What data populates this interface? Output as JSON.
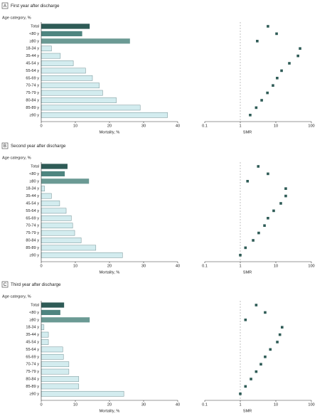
{
  "chart_data": [
    {
      "type": "bar",
      "panel": "A",
      "title": "First year after discharge",
      "categories_label": "Age category, %",
      "categories": [
        "Total",
        "<80 y",
        "≥80 y",
        "18-34 y",
        "35-44 y",
        "45-54 y",
        "55-64 y",
        "65-69 y",
        "70-74 y",
        "75-79 y",
        "80-84 y",
        "85-89 y",
        "≥90 y"
      ],
      "bar_colors": [
        "#2e5b56",
        "#4f8580",
        "#6b9a94",
        "#d3ecef",
        "#d3ecef",
        "#d3ecef",
        "#d3ecef",
        "#d3ecef",
        "#d3ecef",
        "#d3ecef",
        "#d3ecef",
        "#d3ecef",
        "#d3ecef"
      ],
      "mortality": {
        "xlabel": "Mortality, %",
        "xlim": [
          0,
          40
        ],
        "xticks": [
          0,
          10,
          20,
          30,
          40
        ],
        "values": [
          14.2,
          12,
          26,
          3,
          5.6,
          9.4,
          13,
          15,
          17,
          18,
          22,
          29,
          37
        ]
      },
      "smr": {
        "type": "scatter",
        "xlabel": "SMR",
        "log": true,
        "xlim": [
          0.1,
          100
        ],
        "xticks": [
          0.1,
          1,
          10,
          100
        ],
        "reference_line": 1,
        "color": "#2e5b56",
        "values": [
          6,
          10.5,
          3,
          48,
          42,
          24,
          14.5,
          10.9,
          8.3,
          5.8,
          4,
          2.8,
          1.9
        ]
      }
    },
    {
      "type": "bar",
      "panel": "B",
      "title": "Second year after discharge",
      "categories_label": "Age category, %",
      "categories": [
        "Total",
        "<80 y",
        "≥80 y",
        "18-34 y",
        "35-44 y",
        "45-54 y",
        "55-64 y",
        "65-69 y",
        "70-74 y",
        "75-79 y",
        "80-84 y",
        "85-89 y",
        "≥90 y"
      ],
      "bar_colors": [
        "#2e5b56",
        "#4f8580",
        "#6b9a94",
        "#d3ecef",
        "#d3ecef",
        "#d3ecef",
        "#d3ecef",
        "#d3ecef",
        "#d3ecef",
        "#d3ecef",
        "#d3ecef",
        "#d3ecef",
        "#d3ecef"
      ],
      "mortality": {
        "xlabel": "Mortality, %",
        "xlim": [
          0,
          40
        ],
        "xticks": [
          0,
          10,
          20,
          30,
          40
        ],
        "values": [
          7.7,
          6.9,
          14,
          1,
          3,
          5.4,
          7.3,
          8.8,
          9.2,
          9.8,
          11.7,
          16,
          23.8
        ]
      },
      "smr": {
        "type": "scatter",
        "xlabel": "SMR",
        "log": true,
        "xlim": [
          0.1,
          100
        ],
        "xticks": [
          0.1,
          1,
          10,
          100
        ],
        "reference_line": 1,
        "color": "#2e5b56",
        "values": [
          3.2,
          6,
          1.6,
          19,
          19,
          13.8,
          8.7,
          6,
          4.8,
          3.3,
          2.3,
          1.4,
          1
        ]
      }
    },
    {
      "type": "bar",
      "panel": "C",
      "title": "Third year after discharge",
      "categories_label": "Age category, %",
      "categories": [
        "Total",
        "<80 y",
        "≥80 y",
        "18-34 y",
        "35-44 y",
        "45-54 y",
        "55-64 y",
        "65-69 y",
        "70-74 y",
        "75-79 y",
        "80-84 y",
        "85-89 y",
        "≥90 y"
      ],
      "bar_colors": [
        "#2e5b56",
        "#4f8580",
        "#6b9a94",
        "#d3ecef",
        "#d3ecef",
        "#d3ecef",
        "#d3ecef",
        "#d3ecef",
        "#d3ecef",
        "#d3ecef",
        "#d3ecef",
        "#d3ecef",
        "#d3ecef"
      ],
      "mortality": {
        "xlabel": "Mortality, %",
        "xlim": [
          0,
          40
        ],
        "xticks": [
          0,
          10,
          20,
          30,
          40
        ],
        "values": [
          6.7,
          5.6,
          14.2,
          0.8,
          2.1,
          2.1,
          6.3,
          6.5,
          8.1,
          8.1,
          11,
          11,
          24.2
        ]
      },
      "smr": {
        "type": "scatter",
        "xlabel": "SMR",
        "log": true,
        "xlim": [
          0.1,
          100
        ],
        "xticks": [
          0.1,
          1,
          10,
          100
        ],
        "reference_line": 1,
        "color": "#2e5b56",
        "values": [
          2.8,
          5,
          1.4,
          15,
          13,
          11,
          7,
          5,
          3.8,
          2.8,
          2,
          1.4,
          1
        ]
      }
    }
  ]
}
